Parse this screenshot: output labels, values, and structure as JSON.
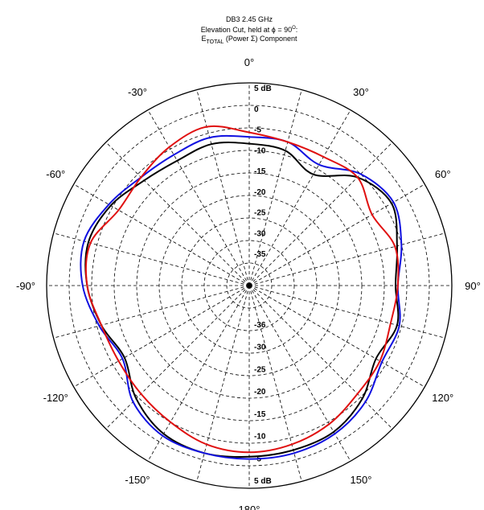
{
  "chart_data": {
    "type": "polar-line",
    "title": "DB3 2.45 GHz",
    "subtitle_line1": "Elevation Cut, held at ϕ = 90",
    "subtitle_line1_sup": "O",
    "subtitle_line1_end": ":",
    "subtitle_line2_main": "E",
    "subtitle_line2_sub": "TOTAL",
    "subtitle_line2_rest": " (Power Σ) Component",
    "angle_labels": [
      {
        "angle": 0,
        "text": "0°"
      },
      {
        "angle": 30,
        "text": "30°"
      },
      {
        "angle": 60,
        "text": "60°"
      },
      {
        "angle": 90,
        "text": "90°"
      },
      {
        "angle": 120,
        "text": "120°"
      },
      {
        "angle": 150,
        "text": "150°"
      },
      {
        "angle": 180,
        "text": "180°"
      },
      {
        "angle": -150,
        "text": "-150°"
      },
      {
        "angle": -120,
        "text": "-120°"
      },
      {
        "angle": -90,
        "text": "-90°"
      },
      {
        "angle": -60,
        "text": "-60°"
      },
      {
        "angle": -30,
        "text": "-30°"
      }
    ],
    "radial_range_db": [
      -40,
      5
    ],
    "radial_ticks_top": [
      "5 dB",
      "0",
      "-5",
      "-10",
      "-15",
      "-20",
      "-25",
      "-30",
      "-35"
    ],
    "radial_ticks_bottom": [
      "5 dB",
      "-5",
      "-10",
      "-15",
      "-20",
      "-25",
      "-30",
      "-36"
    ],
    "angle_grid_step_deg": 15,
    "grid": true,
    "series": [
      {
        "color": "#000000",
        "angles": [
          0,
          15,
          30,
          45,
          60,
          75,
          90,
          105,
          120,
          135,
          150,
          165,
          180,
          195,
          210,
          225,
          240,
          255,
          270,
          285,
          300,
          315,
          330,
          345
        ],
        "values_db": [
          -8.5,
          -9.0,
          -11.5,
          -6.0,
          -3.5,
          -6.0,
          -7.5,
          -6.0,
          -7.5,
          -4.5,
          -2.5,
          -2.2,
          -2.0,
          -1.5,
          -2.0,
          -4.5,
          -8.0,
          -6.0,
          -4.0,
          -3.0,
          -4.5,
          -7.0,
          -8.0,
          -7.5
        ]
      },
      {
        "color": "#1010e0",
        "angles": [
          0,
          15,
          30,
          45,
          60,
          75,
          90,
          105,
          120,
          135,
          150,
          165,
          180,
          195,
          210,
          225,
          240,
          255,
          270,
          285,
          300,
          315,
          330,
          345
        ],
        "values_db": [
          -7.0,
          -7.0,
          -9.0,
          -5.0,
          -3.0,
          -5.0,
          -7.0,
          -5.5,
          -6.0,
          -3.5,
          -2.0,
          -1.5,
          -1.5,
          -1.5,
          -1.5,
          -3.5,
          -7.5,
          -5.5,
          -3.0,
          -2.0,
          -4.0,
          -6.0,
          -6.5,
          -6.0
        ]
      },
      {
        "color": "#e01010",
        "angles": [
          0,
          15,
          30,
          45,
          60,
          75,
          90,
          105,
          120,
          135,
          150,
          165,
          180,
          195,
          210,
          225,
          240,
          255,
          270,
          285,
          300,
          315,
          330,
          345
        ],
        "values_db": [
          -6.0,
          -7.0,
          -7.0,
          -6.0,
          -8.5,
          -6.5,
          -7.0,
          -7.5,
          -6.5,
          -6.0,
          -4.5,
          -3.5,
          -3.0,
          -3.5,
          -5.0,
          -6.0,
          -6.5,
          -6.0,
          -4.0,
          -3.5,
          -6.5,
          -6.0,
          -4.5,
          -3.5
        ]
      }
    ]
  }
}
